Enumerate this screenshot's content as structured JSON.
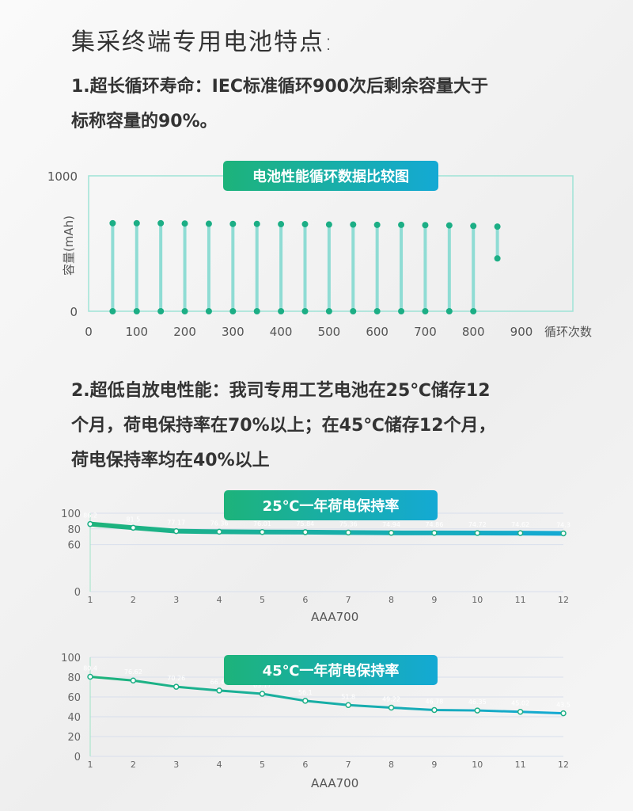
{
  "title": "集采终端专用电池特点:",
  "p1": [
    "1.超长循环寿命：IEC标准循环900次后剩余容量大于",
    "标称容量的90%。"
  ],
  "p2": [
    "2.超低自放电性能：我司专用工艺电池在25℃储存12",
    "个月，荷电保持率在70%以上；在45℃储存12个月，",
    "荷电保持率均在40%以上"
  ],
  "colors": {
    "green": "#1db37a",
    "blue": "#14a9d4"
  },
  "chart_data": [
    {
      "type": "bar",
      "title": "电池性能循环数据比较图",
      "ylabel": "容量(mAh)",
      "xlabel": "循环次数",
      "ylim": [
        0,
        1000
      ],
      "xlim": [
        0,
        900
      ],
      "yticks": [
        "0",
        "1000"
      ],
      "xticks": [
        "0",
        "100",
        "200",
        "300",
        "400",
        "500",
        "600",
        "700",
        "800",
        "900"
      ],
      "x": [
        50,
        100,
        150,
        200,
        250,
        300,
        350,
        400,
        450,
        500,
        550,
        600,
        650,
        700,
        750,
        800,
        850
      ],
      "values": [
        650,
        650,
        650,
        648,
        646,
        645,
        645,
        643,
        643,
        640,
        640,
        638,
        638,
        636,
        634,
        630,
        625
      ],
      "reference_line": 480
    },
    {
      "type": "line",
      "title": "25℃一年荷电保持率",
      "ylim": [
        0,
        100
      ],
      "yticks": [
        "0",
        "60",
        "80",
        "100"
      ],
      "categories": [
        "1",
        "2",
        "3",
        "4",
        "5",
        "6",
        "7",
        "8",
        "9",
        "10",
        "11",
        "12"
      ],
      "series": [
        {
          "name": "AAA700",
          "values": [
            86.2,
            81.5,
            77.17,
            76.36,
            76.01,
            75.84,
            75.36,
            74.94,
            74.86,
            74.72,
            74.62,
            74.3
          ]
        }
      ]
    },
    {
      "type": "line",
      "title": "45℃一年荷电保持率",
      "ylim": [
        0,
        100
      ],
      "yticks": [
        "0",
        "20",
        "40",
        "60",
        "80",
        "100"
      ],
      "categories": [
        "1",
        "2",
        "3",
        "4",
        "5",
        "6",
        "7",
        "8",
        "9",
        "10",
        "11",
        "12"
      ],
      "series": [
        {
          "name": "AAA700",
          "values": [
            80.4,
            76.62,
            70.26,
            66.46,
            63.17,
            56.1,
            51.8,
            49.22,
            46.78,
            46.35,
            45.02,
            43.5
          ]
        }
      ]
    }
  ]
}
